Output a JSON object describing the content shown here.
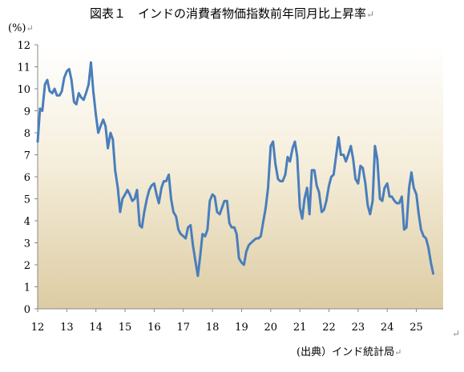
{
  "title": "図表１　インドの消費者物価指数前年同月比上昇率",
  "return_mark": "↵",
  "chart_data": {
    "type": "line",
    "title": "図表１　インドの消費者物価指数前年同月比上昇率",
    "ylabel": "(%)",
    "xlabel": "",
    "source": "(出典）インド統計局",
    "ylim": [
      0,
      12
    ],
    "yticks": [
      0,
      1,
      2,
      3,
      4,
      5,
      6,
      7,
      8,
      9,
      10,
      11,
      12
    ],
    "xlim": [
      2012.0,
      2025.92
    ],
    "xticks": [
      {
        "label": "12",
        "value": 2012.0
      },
      {
        "label": "13",
        "value": 2013.0
      },
      {
        "label": "14",
        "value": 2014.0
      },
      {
        "label": "15",
        "value": 2015.0
      },
      {
        "label": "16",
        "value": 2016.0
      },
      {
        "label": "17",
        "value": 2017.0
      },
      {
        "label": "18",
        "value": 2018.0
      },
      {
        "label": "19",
        "value": 2019.0
      },
      {
        "label": "20",
        "value": 2020.0
      },
      {
        "label": "21",
        "value": 2021.0
      },
      {
        "label": "22",
        "value": 2022.0
      },
      {
        "label": "23",
        "value": 2023.0
      },
      {
        "label": "24",
        "value": 2024.0
      },
      {
        "label": "25",
        "value": 2025.0
      }
    ],
    "grid": false,
    "line_color": "#4a7ebb",
    "series": [
      {
        "points": [
          [
            2012.0,
            7.6
          ],
          [
            2012.08,
            9.1
          ],
          [
            2012.16,
            9.0
          ],
          [
            2012.25,
            10.2
          ],
          [
            2012.33,
            10.4
          ],
          [
            2012.41,
            9.9
          ],
          [
            2012.5,
            9.8
          ],
          [
            2012.58,
            10.0
          ],
          [
            2012.66,
            9.7
          ],
          [
            2012.75,
            9.7
          ],
          [
            2012.83,
            9.9
          ],
          [
            2012.91,
            10.5
          ],
          [
            2013.0,
            10.8
          ],
          [
            2013.08,
            10.9
          ],
          [
            2013.16,
            10.4
          ],
          [
            2013.25,
            9.4
          ],
          [
            2013.33,
            9.3
          ],
          [
            2013.41,
            9.8
          ],
          [
            2013.5,
            9.6
          ],
          [
            2013.58,
            9.5
          ],
          [
            2013.66,
            9.8
          ],
          [
            2013.75,
            10.2
          ],
          [
            2013.83,
            11.2
          ],
          [
            2013.91,
            9.9
          ],
          [
            2014.0,
            8.8
          ],
          [
            2014.08,
            8.0
          ],
          [
            2014.16,
            8.3
          ],
          [
            2014.25,
            8.6
          ],
          [
            2014.33,
            8.3
          ],
          [
            2014.41,
            7.3
          ],
          [
            2014.5,
            8.0
          ],
          [
            2014.58,
            7.7
          ],
          [
            2014.66,
            6.3
          ],
          [
            2014.75,
            5.5
          ],
          [
            2014.83,
            4.4
          ],
          [
            2014.91,
            5.0
          ],
          [
            2015.0,
            5.2
          ],
          [
            2015.08,
            5.4
          ],
          [
            2015.16,
            5.2
          ],
          [
            2015.25,
            4.9
          ],
          [
            2015.33,
            5.0
          ],
          [
            2015.41,
            5.4
          ],
          [
            2015.5,
            3.8
          ],
          [
            2015.58,
            3.7
          ],
          [
            2015.66,
            4.4
          ],
          [
            2015.75,
            5.0
          ],
          [
            2015.83,
            5.4
          ],
          [
            2015.91,
            5.6
          ],
          [
            2016.0,
            5.7
          ],
          [
            2016.08,
            5.2
          ],
          [
            2016.16,
            4.8
          ],
          [
            2016.25,
            5.5
          ],
          [
            2016.33,
            5.8
          ],
          [
            2016.41,
            5.8
          ],
          [
            2016.5,
            6.1
          ],
          [
            2016.58,
            5.0
          ],
          [
            2016.66,
            4.4
          ],
          [
            2016.75,
            4.2
          ],
          [
            2016.83,
            3.6
          ],
          [
            2016.91,
            3.4
          ],
          [
            2017.0,
            3.3
          ],
          [
            2017.08,
            3.2
          ],
          [
            2017.16,
            3.7
          ],
          [
            2017.25,
            3.8
          ],
          [
            2017.33,
            2.9
          ],
          [
            2017.41,
            2.2
          ],
          [
            2017.5,
            1.5
          ],
          [
            2017.58,
            2.4
          ],
          [
            2017.66,
            3.4
          ],
          [
            2017.75,
            3.3
          ],
          [
            2017.83,
            3.6
          ],
          [
            2017.91,
            4.9
          ],
          [
            2018.0,
            5.2
          ],
          [
            2018.08,
            5.1
          ],
          [
            2018.16,
            4.4
          ],
          [
            2018.25,
            4.3
          ],
          [
            2018.33,
            4.6
          ],
          [
            2018.41,
            4.9
          ],
          [
            2018.5,
            4.9
          ],
          [
            2018.58,
            3.9
          ],
          [
            2018.66,
            3.7
          ],
          [
            2018.75,
            3.7
          ],
          [
            2018.83,
            3.4
          ],
          [
            2018.91,
            2.3
          ],
          [
            2019.0,
            2.1
          ],
          [
            2019.08,
            2.0
          ],
          [
            2019.16,
            2.6
          ],
          [
            2019.25,
            2.9
          ],
          [
            2019.33,
            3.0
          ],
          [
            2019.41,
            3.1
          ],
          [
            2019.5,
            3.2
          ],
          [
            2019.58,
            3.2
          ],
          [
            2019.66,
            3.3
          ],
          [
            2019.75,
            4.0
          ],
          [
            2019.83,
            4.6
          ],
          [
            2019.91,
            5.5
          ],
          [
            2020.0,
            7.4
          ],
          [
            2020.08,
            7.6
          ],
          [
            2020.16,
            6.6
          ],
          [
            2020.25,
            5.9
          ],
          [
            2020.33,
            5.8
          ],
          [
            2020.41,
            5.8
          ],
          [
            2020.5,
            6.1
          ],
          [
            2020.58,
            6.9
          ],
          [
            2020.66,
            6.7
          ],
          [
            2020.75,
            7.3
          ],
          [
            2020.83,
            7.6
          ],
          [
            2020.91,
            6.9
          ],
          [
            2021.0,
            4.6
          ],
          [
            2021.08,
            4.1
          ],
          [
            2021.16,
            5.0
          ],
          [
            2021.25,
            5.5
          ],
          [
            2021.33,
            4.3
          ],
          [
            2021.41,
            6.3
          ],
          [
            2021.5,
            6.3
          ],
          [
            2021.58,
            5.6
          ],
          [
            2021.66,
            5.3
          ],
          [
            2021.75,
            4.4
          ],
          [
            2021.83,
            4.5
          ],
          [
            2021.91,
            4.9
          ],
          [
            2022.0,
            5.6
          ],
          [
            2022.08,
            6.0
          ],
          [
            2022.16,
            6.1
          ],
          [
            2022.25,
            7.0
          ],
          [
            2022.33,
            7.8
          ],
          [
            2022.41,
            7.0
          ],
          [
            2022.5,
            7.0
          ],
          [
            2022.58,
            6.7
          ],
          [
            2022.66,
            7.0
          ],
          [
            2022.75,
            7.4
          ],
          [
            2022.83,
            6.8
          ],
          [
            2022.91,
            5.9
          ],
          [
            2023.0,
            5.7
          ],
          [
            2023.08,
            6.5
          ],
          [
            2023.16,
            6.4
          ],
          [
            2023.25,
            5.7
          ],
          [
            2023.33,
            4.7
          ],
          [
            2023.41,
            4.3
          ],
          [
            2023.5,
            4.9
          ],
          [
            2023.58,
            7.4
          ],
          [
            2023.66,
            6.8
          ],
          [
            2023.75,
            5.0
          ],
          [
            2023.83,
            4.9
          ],
          [
            2023.91,
            5.5
          ],
          [
            2024.0,
            5.7
          ],
          [
            2024.08,
            5.1
          ],
          [
            2024.16,
            5.1
          ],
          [
            2024.25,
            4.9
          ],
          [
            2024.33,
            4.8
          ],
          [
            2024.41,
            4.8
          ],
          [
            2024.5,
            5.1
          ],
          [
            2024.58,
            3.6
          ],
          [
            2024.66,
            3.7
          ],
          [
            2024.75,
            5.5
          ],
          [
            2024.83,
            6.2
          ],
          [
            2024.91,
            5.5
          ],
          [
            2025.0,
            5.2
          ],
          [
            2025.08,
            4.3
          ],
          [
            2025.16,
            3.6
          ],
          [
            2025.25,
            3.3
          ],
          [
            2025.33,
            3.2
          ],
          [
            2025.41,
            2.8
          ],
          [
            2025.5,
            2.1
          ],
          [
            2025.58,
            1.6
          ]
        ]
      }
    ]
  }
}
